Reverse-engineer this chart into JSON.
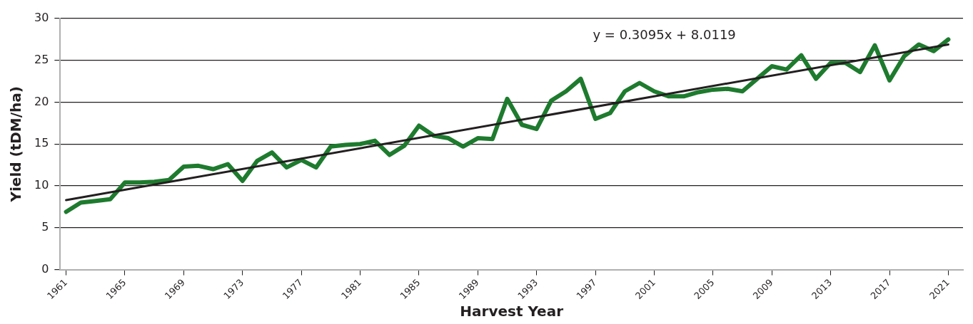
{
  "chart_data": {
    "type": "line",
    "xlabel": "Harvest Year",
    "ylabel": "Yield (tDM/ha)",
    "x": [
      1961,
      1962,
      1963,
      1964,
      1965,
      1966,
      1967,
      1968,
      1969,
      1970,
      1971,
      1972,
      1973,
      1974,
      1975,
      1976,
      1977,
      1978,
      1979,
      1980,
      1981,
      1982,
      1983,
      1984,
      1985,
      1986,
      1987,
      1988,
      1989,
      1990,
      1991,
      1992,
      1993,
      1994,
      1995,
      1996,
      1997,
      1998,
      1999,
      2000,
      2001,
      2002,
      2003,
      2004,
      2005,
      2006,
      2007,
      2008,
      2009,
      2010,
      2011,
      2012,
      2013,
      2014,
      2015,
      2016,
      2017,
      2018,
      2019,
      2020,
      2021
    ],
    "series": [
      {
        "color": "#1e7b2e",
        "values": [
          6.9,
          8.0,
          8.2,
          8.4,
          10.4,
          10.4,
          10.5,
          10.7,
          12.3,
          12.4,
          12.0,
          12.6,
          10.6,
          13.0,
          14.0,
          12.2,
          13.1,
          12.2,
          14.7,
          14.9,
          15.0,
          15.4,
          13.7,
          14.8,
          17.2,
          16.0,
          15.7,
          14.7,
          15.7,
          15.6,
          20.4,
          17.3,
          16.8,
          20.2,
          21.3,
          22.8,
          18.0,
          18.7,
          21.3,
          22.3,
          21.3,
          20.7,
          20.7,
          21.2,
          21.5,
          21.6,
          21.3,
          22.8,
          24.3,
          23.9,
          25.6,
          22.8,
          24.7,
          24.7,
          23.6,
          26.8,
          22.6,
          25.5,
          26.9,
          26.1,
          27.5
        ]
      },
      {
        "type": "line",
        "color": "#231f20",
        "x": [
          1961,
          2021
        ],
        "values": [
          8.3,
          26.9
        ]
      }
    ],
    "xlim": [
      1960.6,
      2022
    ],
    "xticks": [
      1961,
      1965,
      1969,
      1973,
      1977,
      1981,
      1985,
      1989,
      1993,
      1997,
      2001,
      2005,
      2009,
      2013,
      2017,
      2021
    ],
    "ylim": [
      0,
      30
    ],
    "yticks": [
      0,
      5,
      10,
      15,
      20,
      25,
      30
    ],
    "grid": "y",
    "legend": false,
    "marker": "none",
    "line_style": "solid",
    "annotations": [
      "y = 0.3095x + 8.0119"
    ]
  }
}
